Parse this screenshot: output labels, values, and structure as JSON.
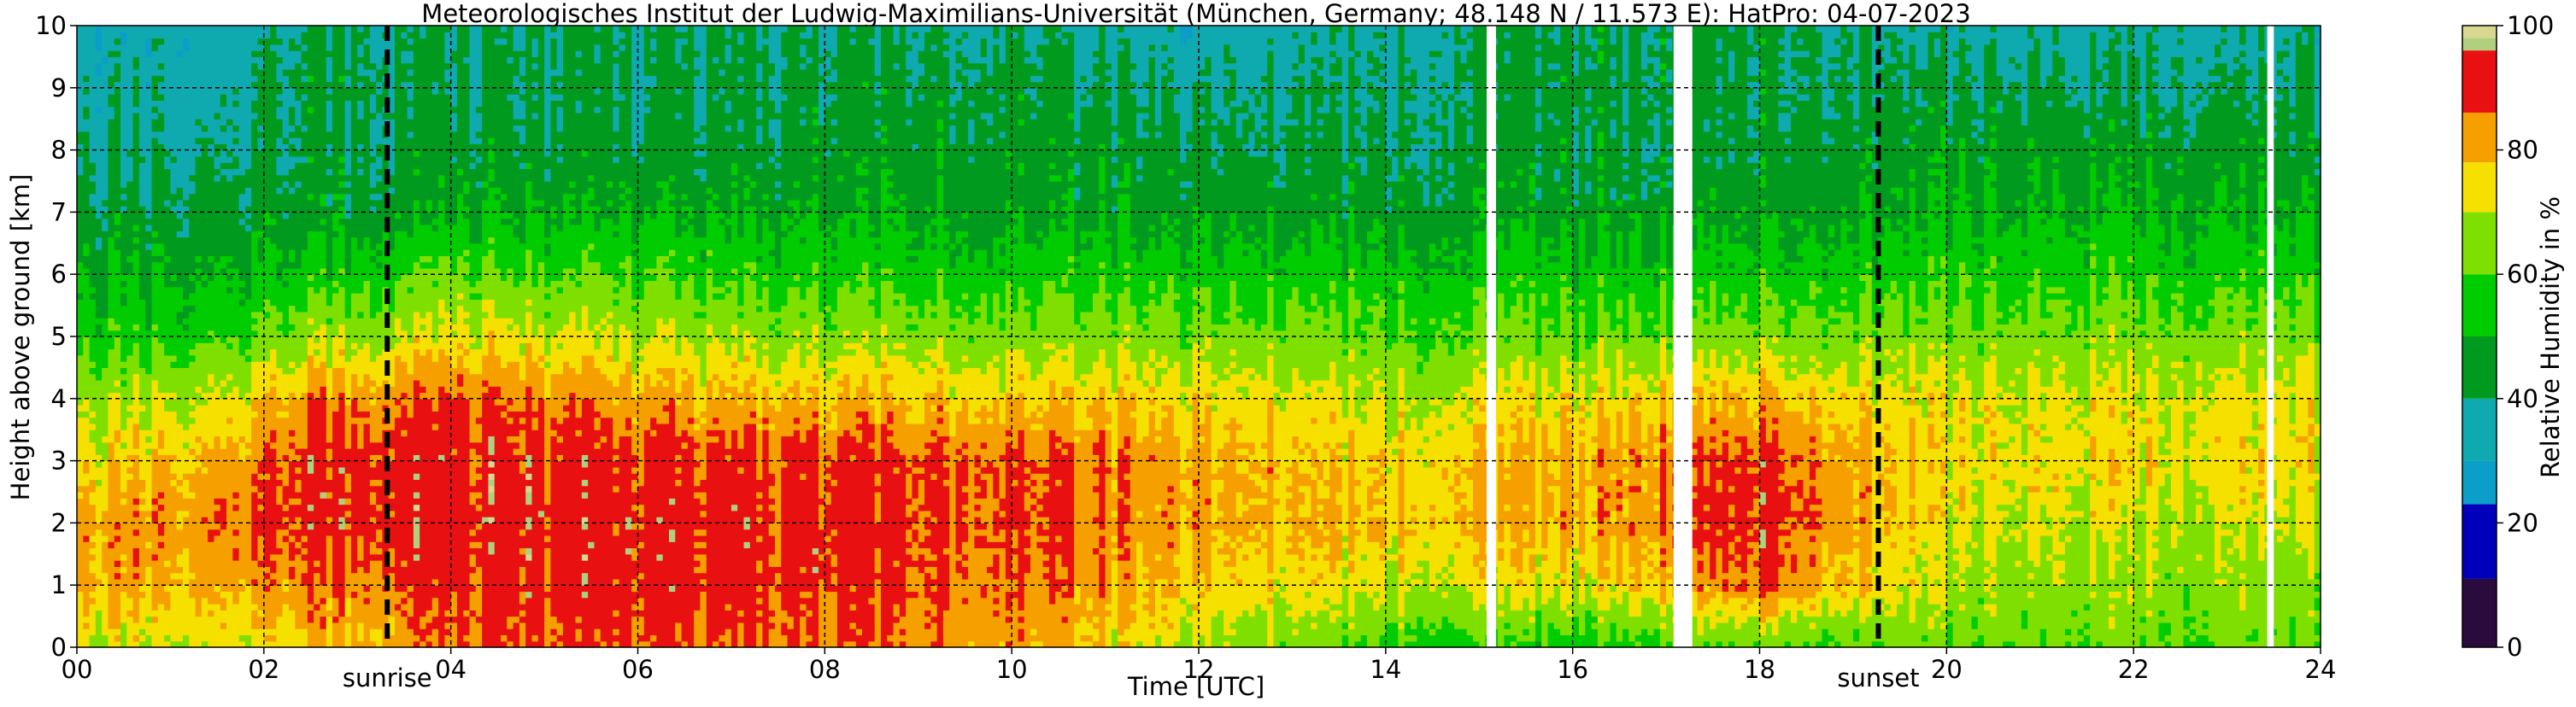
{
  "chart_data": {
    "type": "heatmap",
    "title": "Meteorologisches Institut der Ludwig-Maximilians-Universität (München, Germany; 48.148 N / 11.573 E):    HatPro: 04-07-2023",
    "xlabel": "Time [UTC]",
    "ylabel": "Height above ground [km]",
    "xlim": [
      0,
      24
    ],
    "ylim": [
      0,
      10
    ],
    "x_ticks": [
      0,
      2,
      4,
      6,
      8,
      10,
      12,
      14,
      16,
      18,
      20,
      22,
      24
    ],
    "x_tick_labels": [
      "00",
      "02",
      "04",
      "06",
      "08",
      "10",
      "12",
      "14",
      "16",
      "18",
      "20",
      "22",
      "24"
    ],
    "y_ticks": [
      0,
      1,
      2,
      3,
      4,
      5,
      6,
      7,
      8,
      9,
      10
    ],
    "y_tick_labels": [
      "0",
      "1",
      "2",
      "3",
      "4",
      "5",
      "6",
      "7",
      "8",
      "9",
      "10"
    ],
    "grid": true,
    "colorbar": {
      "label": "Relative Humidity in %",
      "range": [
        0,
        100
      ],
      "ticks": [
        0,
        20,
        40,
        60,
        80,
        100
      ],
      "bands": [
        {
          "from": 0,
          "to": 11,
          "color": "#2b0a3d"
        },
        {
          "from": 11,
          "to": 23,
          "color": "#0000bb"
        },
        {
          "from": 23,
          "to": 30,
          "color": "#0a9ec8"
        },
        {
          "from": 30,
          "to": 40,
          "color": "#0eaab0"
        },
        {
          "from": 40,
          "to": 50,
          "color": "#009a1e"
        },
        {
          "from": 50,
          "to": 60,
          "color": "#00cc00"
        },
        {
          "from": 60,
          "to": 70,
          "color": "#7fe000"
        },
        {
          "from": 70,
          "to": 78,
          "color": "#f6e000"
        },
        {
          "from": 78,
          "to": 86,
          "color": "#f6a000"
        },
        {
          "from": 86,
          "to": 96,
          "color": "#e81010"
        },
        {
          "from": 96,
          "to": 98,
          "color": "#b0d080"
        },
        {
          "from": 98,
          "to": 100,
          "color": "#d8d890"
        }
      ]
    },
    "events": [
      {
        "label": "sunrise",
        "x": 3.32
      },
      {
        "label": "sunset",
        "x": 19.27
      }
    ],
    "data_gaps": [
      [
        15.08,
        15.18
      ],
      [
        17.08,
        17.28
      ],
      [
        23.43,
        23.5
      ]
    ],
    "rh_profile_by_time": [
      {
        "t": 0.0,
        "rh": [
          70,
          80,
          80,
          74,
          66,
          55,
          50,
          42,
          38,
          36,
          34
        ]
      },
      {
        "t": 1.5,
        "rh": [
          72,
          80,
          86,
          80,
          72,
          58,
          50,
          44,
          40,
          37,
          35
        ]
      },
      {
        "t": 2.5,
        "rh": [
          76,
          84,
          90,
          90,
          82,
          66,
          54,
          45,
          42,
          44,
          40
        ]
      },
      {
        "t": 4.0,
        "rh": [
          86,
          90,
          92,
          92,
          88,
          74,
          62,
          50,
          44,
          42,
          42
        ]
      },
      {
        "t": 6.0,
        "rh": [
          86,
          90,
          90,
          88,
          80,
          68,
          58,
          48,
          42,
          40,
          40
        ]
      },
      {
        "t": 8.0,
        "rh": [
          84,
          88,
          90,
          88,
          78,
          66,
          56,
          48,
          44,
          42,
          40
        ]
      },
      {
        "t": 10.0,
        "rh": [
          84,
          86,
          88,
          88,
          78,
          66,
          56,
          48,
          46,
          44,
          40
        ]
      },
      {
        "t": 12.0,
        "rh": [
          68,
          76,
          80,
          80,
          74,
          64,
          54,
          46,
          42,
          38,
          34
        ]
      },
      {
        "t": 14.0,
        "rh": [
          58,
          72,
          78,
          76,
          70,
          62,
          54,
          46,
          42,
          40,
          38
        ]
      },
      {
        "t": 16.0,
        "rh": [
          56,
          72,
          80,
          80,
          74,
          62,
          54,
          46,
          44,
          44,
          44
        ]
      },
      {
        "t": 18.0,
        "rh": [
          62,
          88,
          92,
          90,
          80,
          66,
          56,
          48,
          44,
          44,
          44
        ]
      },
      {
        "t": 20.0,
        "rh": [
          62,
          68,
          72,
          74,
          72,
          64,
          56,
          50,
          46,
          42,
          36
        ]
      },
      {
        "t": 22.0,
        "rh": [
          62,
          66,
          70,
          74,
          72,
          64,
          56,
          50,
          46,
          40,
          36
        ]
      },
      {
        "t": 24.0,
        "rh": [
          62,
          66,
          70,
          74,
          72,
          64,
          56,
          48,
          44,
          40,
          36
        ]
      }
    ]
  }
}
